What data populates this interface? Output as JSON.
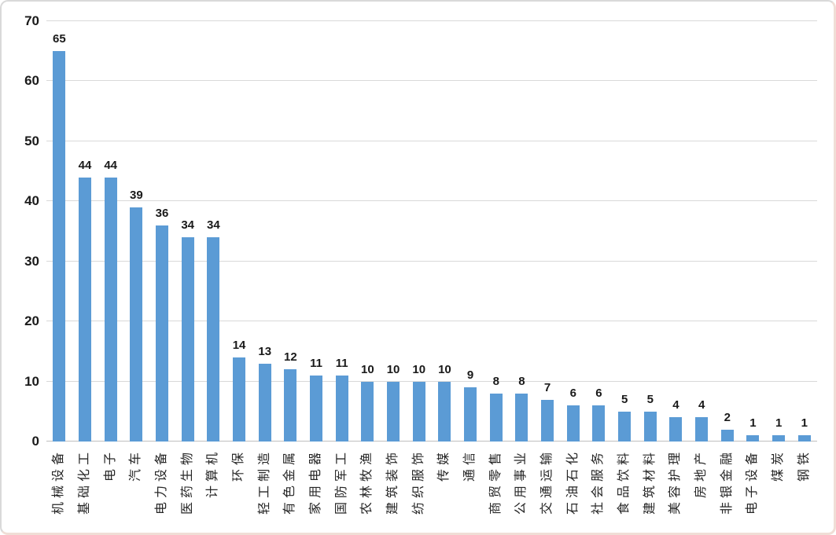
{
  "frame": {
    "background": "#ffffff",
    "border_top_left_color": "#d9d9d9",
    "border_bottom_right_color": "#f0ded6"
  },
  "chart_data": {
    "type": "bar",
    "title": "",
    "xlabel": "",
    "ylabel": "",
    "categories": [
      "机械设备",
      "基础化工",
      "电子",
      "汽车",
      "电力设备",
      "医药生物",
      "计算机",
      "环保",
      "轻工制造",
      "有色金属",
      "家用电器",
      "国防军工",
      "农林牧渔",
      "建筑装饰",
      "纺织服饰",
      "传媒",
      "通信",
      "商贸零售",
      "公用事业",
      "交通运输",
      "石油石化",
      "社会服务",
      "食品饮料",
      "建筑材料",
      "美容护理",
      "房地产",
      "非银金融",
      "电子设备",
      "煤炭",
      "钢铁"
    ],
    "values": [
      65,
      44,
      44,
      39,
      36,
      34,
      34,
      14,
      13,
      12,
      11,
      11,
      10,
      10,
      10,
      10,
      9,
      8,
      8,
      7,
      6,
      6,
      5,
      5,
      4,
      4,
      2,
      1,
      1,
      1
    ],
    "value_labels_shown": true,
    "ylim": [
      0,
      70
    ],
    "yticks": [
      0,
      10,
      20,
      30,
      40,
      50,
      60,
      70
    ],
    "grid": "horizontal",
    "legend": "none",
    "x_label_rotation_degrees": 90,
    "bar_color": "#5b9bd5",
    "gridline_color": "#d9d9d9",
    "axis_line_color": "#bfbfbf",
    "text_color": "#1a1a1a",
    "x_label_color": "#262626"
  }
}
